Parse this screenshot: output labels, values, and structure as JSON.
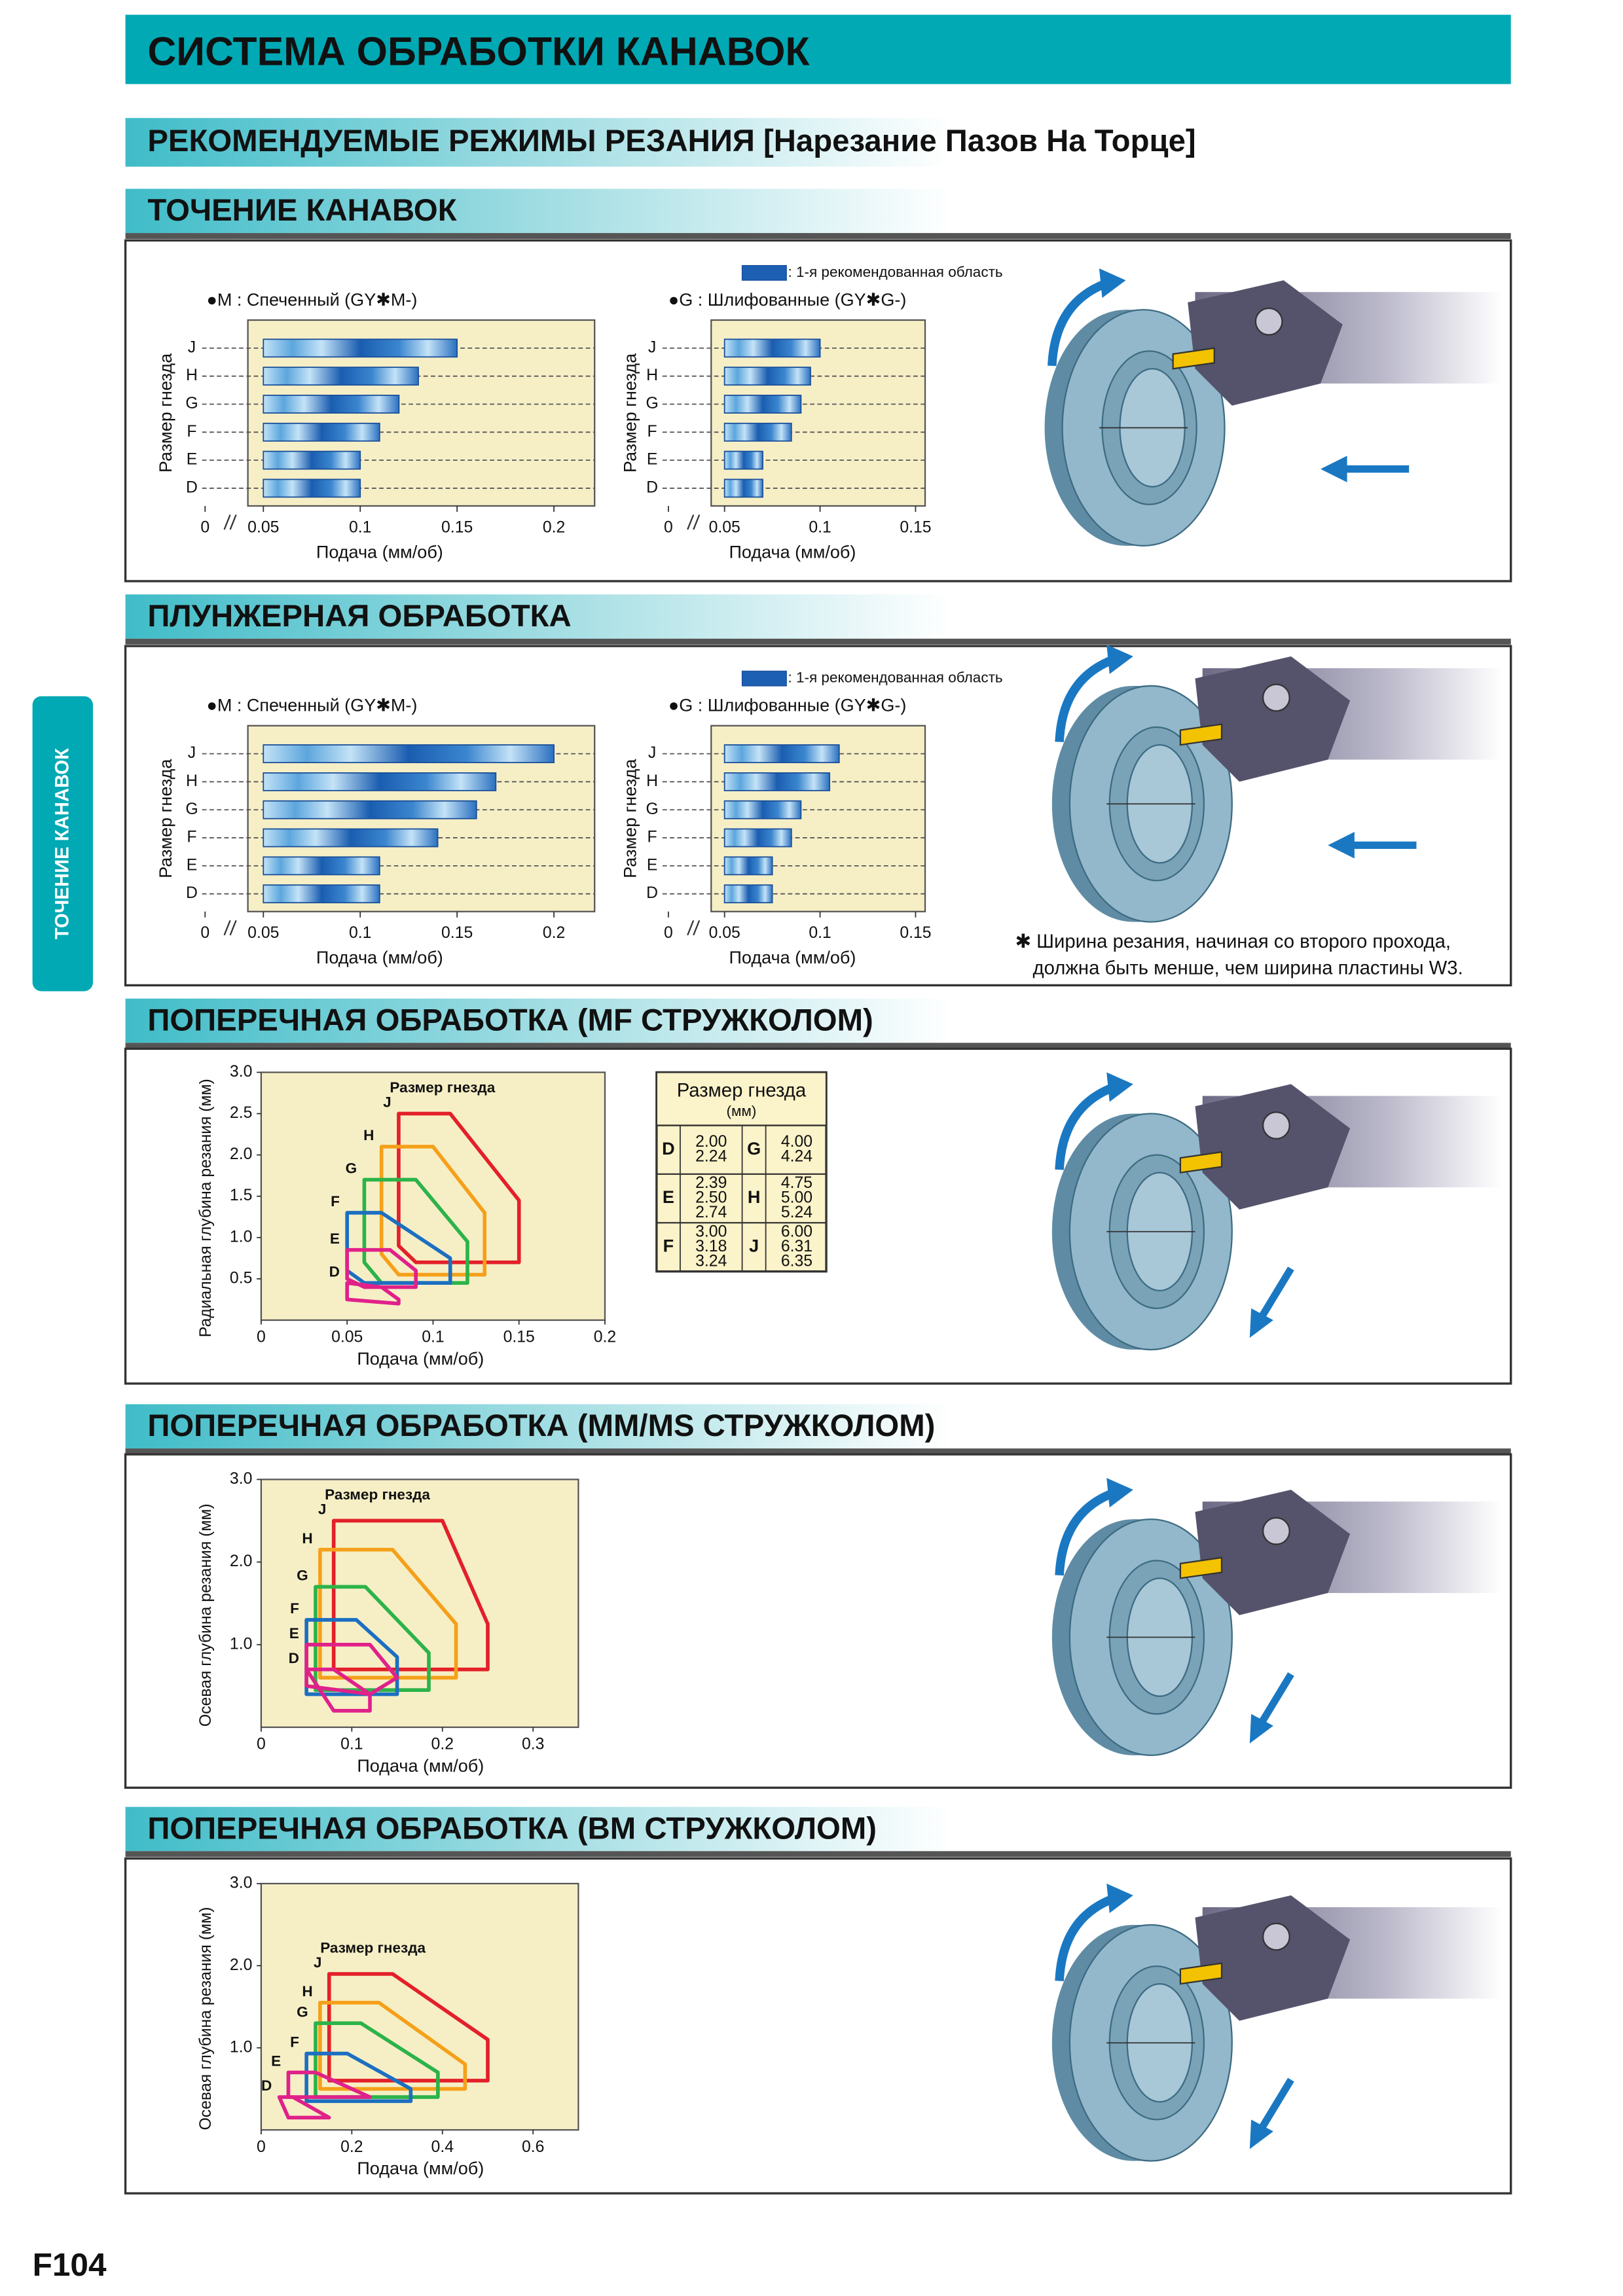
{
  "header": {
    "title": "СИСТЕМА ОБРАБОТКИ КАНАВОК",
    "subtitle": "РЕКОМЕНДУЕМЫЕ РЕЖИМЫ РЕЗАНИЯ [Нарезание Пазов На Торце]"
  },
  "side_tab": "ТОЧЕНИЕ КАНАВОК",
  "page_number": "F104",
  "sections": [
    {
      "title": "ТОЧЕНИЕ КАНАВОК",
      "legend": {
        "label": ": 1-я рекомендованная область",
        "color": "#1d5fb3"
      },
      "chart_data": [
        {
          "type": "range-bar",
          "title": "●M : Спеченный (GY✱M-)",
          "ylabel": "Размер гнезда",
          "xlabel": "Подача (мм/об)",
          "categories": [
            "J",
            "H",
            "G",
            "F",
            "E",
            "D"
          ],
          "values": [
            [
              0.05,
              0.15
            ],
            [
              0.05,
              0.13
            ],
            [
              0.05,
              0.12
            ],
            [
              0.05,
              0.11
            ],
            [
              0.05,
              0.1
            ],
            [
              0.05,
              0.1
            ]
          ],
          "xlim": [
            0.042,
            0.221
          ],
          "xticks": [
            0,
            0.05,
            0.1,
            0.15,
            0.2
          ],
          "axis_break": true
        },
        {
          "type": "range-bar",
          "title": "●G : Шлифованные (GY✱G-)",
          "ylabel": "Размер гнезда",
          "xlabel": "Подача (мм/об)",
          "categories": [
            "J",
            "H",
            "G",
            "F",
            "E",
            "D"
          ],
          "values": [
            [
              0.05,
              0.1
            ],
            [
              0.05,
              0.095
            ],
            [
              0.05,
              0.09
            ],
            [
              0.05,
              0.085
            ],
            [
              0.05,
              0.07
            ],
            [
              0.05,
              0.07
            ]
          ],
          "xlim": [
            0.043,
            0.155
          ],
          "xticks": [
            0,
            0.05,
            0.1,
            0.15
          ],
          "axis_break": true
        }
      ]
    },
    {
      "title": "ПЛУНЖЕРНАЯ ОБРАБОТКА",
      "legend": {
        "label": ": 1-я рекомендованная область",
        "color": "#1d5fb3"
      },
      "chart_data": [
        {
          "type": "range-bar",
          "title": "●M : Спеченный (GY✱M-)",
          "ylabel": "Размер гнезда",
          "xlabel": "Подача (мм/об)",
          "categories": [
            "J",
            "H",
            "G",
            "F",
            "E",
            "D"
          ],
          "values": [
            [
              0.05,
              0.2
            ],
            [
              0.05,
              0.17
            ],
            [
              0.05,
              0.16
            ],
            [
              0.05,
              0.14
            ],
            [
              0.05,
              0.11
            ],
            [
              0.05,
              0.11
            ]
          ],
          "xlim": [
            0.042,
            0.221
          ],
          "xticks": [
            0,
            0.05,
            0.1,
            0.15,
            0.2
          ],
          "axis_break": true
        },
        {
          "type": "range-bar",
          "title": "●G : Шлифованные (GY✱G-)",
          "ylabel": "Размер гнезда",
          "xlabel": "Подача (мм/об)",
          "categories": [
            "J",
            "H",
            "G",
            "F",
            "E",
            "D"
          ],
          "values": [
            [
              0.05,
              0.11
            ],
            [
              0.05,
              0.105
            ],
            [
              0.05,
              0.09
            ],
            [
              0.05,
              0.085
            ],
            [
              0.05,
              0.075
            ],
            [
              0.05,
              0.075
            ]
          ],
          "xlim": [
            0.043,
            0.155
          ],
          "xticks": [
            0,
            0.05,
            0.1,
            0.15
          ],
          "axis_break": true
        }
      ],
      "note": [
        "✱ Ширина резания, начиная со второго прохода,",
        "должна быть менше, чем ширина пластины W3."
      ]
    },
    {
      "title": "ПОПЕРЕЧНАЯ ОБРАБОТКА (MF СТРУЖКОЛОМ)",
      "chart_data": {
        "type": "polygon",
        "annotation": "Размер гнезда",
        "xlabel": "Подача (мм/об)",
        "ylabel": "Радиальная глубина резания (мм)",
        "xlim": [
          0,
          0.2
        ],
        "ylim": [
          0,
          3
        ],
        "xticks": [
          0,
          0.05,
          0.1,
          0.15,
          0.2
        ],
        "yticks": [
          0.5,
          {
            "value": 1,
            "label": "1.0"
          },
          1.5,
          {
            "value": 2,
            "label": "2.0"
          },
          2.5,
          {
            "value": 3,
            "label": "3.0"
          }
        ],
        "series": [
          {
            "name": "J",
            "color": "#e3202a",
            "x": [
              0.08,
              0.11,
              0.15,
              0.15,
              0.09,
              0.08
            ],
            "y": [
              2.5,
              2.5,
              1.45,
              0.7,
              0.7,
              0.9
            ]
          },
          {
            "name": "H",
            "color": "#f5a01a",
            "x": [
              0.07,
              0.1,
              0.13,
              0.13,
              0.08,
              0.07
            ],
            "y": [
              2.1,
              2.1,
              1.3,
              0.55,
              0.55,
              0.8
            ]
          },
          {
            "name": "G",
            "color": "#2cb34a",
            "x": [
              0.06,
              0.09,
              0.12,
              0.12,
              0.07,
              0.06
            ],
            "y": [
              1.7,
              1.7,
              0.95,
              0.45,
              0.45,
              0.7
            ]
          },
          {
            "name": "F",
            "color": "#1c6fc1",
            "x": [
              0.05,
              0.07,
              0.11,
              0.11,
              0.06,
              0.05
            ],
            "y": [
              1.3,
              1.3,
              0.75,
              0.45,
              0.45,
              0.6
            ]
          },
          {
            "name": "E",
            "color": "#e0218a",
            "x": [
              0.05,
              0.075,
              0.09,
              0.09,
              0.06,
              0.05
            ],
            "y": [
              0.85,
              0.85,
              0.6,
              0.4,
              0.4,
              0.5
            ]
          },
          {
            "name": "D",
            "color": "#e0218a",
            "x": [
              0.05,
              0.07,
              0.08,
              0.08,
              0.05
            ],
            "y": [
              0.45,
              0.4,
              0.25,
              0.2,
              0.25
            ]
          }
        ]
      },
      "table": {
        "header": [
          "Размер гнезда",
          "(мм)"
        ],
        "rows": [
          [
            {
              "size": "D",
              "values": [
                "2.00",
                "2.24"
              ]
            },
            {
              "size": "G",
              "values": [
                "4.00",
                "4.24"
              ]
            }
          ],
          [
            {
              "size": "E",
              "values": [
                "2.39",
                "2.50",
                "2.74"
              ]
            },
            {
              "size": "H",
              "values": [
                "4.75",
                "5.00",
                "5.24"
              ]
            }
          ],
          [
            {
              "size": "F",
              "values": [
                "3.00",
                "3.18",
                "3.24"
              ]
            },
            {
              "size": "J",
              "values": [
                "6.00",
                "6.31",
                "6.35"
              ]
            }
          ]
        ]
      }
    },
    {
      "title": "ПОПЕРЕЧНАЯ ОБРАБОТКА (MM/MS СТРУЖКОЛОМ)",
      "chart_data": {
        "type": "polygon",
        "annotation": "Размер гнезда",
        "xlabel": "Подача (мм/об)",
        "ylabel": "Осевая глубина резания (мм)",
        "xlim": [
          0,
          0.35
        ],
        "ylim": [
          0,
          3
        ],
        "xticks": [
          0,
          0.1,
          0.2,
          0.3
        ],
        "yticks": [
          {
            "value": 1,
            "label": "1.0"
          },
          {
            "value": 2,
            "label": "2.0"
          },
          {
            "value": 3,
            "label": "3.0"
          }
        ],
        "series": [
          {
            "name": "J",
            "color": "#e3202a",
            "x": [
              0.08,
              0.2,
              0.25,
              0.25,
              0.08
            ],
            "y": [
              2.5,
              2.5,
              1.25,
              0.7,
              0.7
            ]
          },
          {
            "name": "H",
            "color": "#f5a01a",
            "x": [
              0.065,
              0.145,
              0.215,
              0.215,
              0.065
            ],
            "y": [
              2.15,
              2.15,
              1.25,
              0.6,
              0.6
            ]
          },
          {
            "name": "G",
            "color": "#2cb34a",
            "x": [
              0.06,
              0.115,
              0.185,
              0.185,
              0.06
            ],
            "y": [
              1.7,
              1.7,
              0.9,
              0.45,
              0.45
            ]
          },
          {
            "name": "F",
            "color": "#1c6fc1",
            "x": [
              0.05,
              0.105,
              0.15,
              0.15,
              0.05
            ],
            "y": [
              1.3,
              1.3,
              0.85,
              0.4,
              0.4
            ]
          },
          {
            "name": "E",
            "color": "#e0218a",
            "x": [
              0.05,
              0.12,
              0.15,
              0.12,
              0.05
            ],
            "y": [
              1.0,
              1.0,
              0.6,
              0.4,
              0.5
            ]
          },
          {
            "name": "D",
            "color": "#e0218a",
            "x": [
              0.05,
              0.08,
              0.12,
              0.12,
              0.08
            ],
            "y": [
              0.7,
              0.7,
              0.4,
              0.2,
              0.2
            ]
          }
        ]
      }
    },
    {
      "title": "ПОПЕРЕЧНАЯ ОБРАБОТКА (BM СТРУЖКОЛОМ)",
      "chart_data": {
        "type": "polygon",
        "annotation": "Размер гнезда",
        "xlabel": "Подача (мм/об)",
        "ylabel": "Осевая глубина резания (мм)",
        "xlim": [
          0,
          0.7
        ],
        "ylim": [
          0,
          3
        ],
        "xticks": [
          0,
          0.2,
          0.4,
          0.6
        ],
        "yticks": [
          {
            "value": 1,
            "label": "1.0"
          },
          {
            "value": 2,
            "label": "2.0"
          },
          {
            "value": 3,
            "label": "3.0"
          }
        ],
        "series": [
          {
            "name": "J",
            "color": "#e3202a",
            "x": [
              0.15,
              0.29,
              0.5,
              0.5,
              0.15
            ],
            "y": [
              1.9,
              1.9,
              1.1,
              0.6,
              0.6
            ]
          },
          {
            "name": "H",
            "color": "#f5a01a",
            "x": [
              0.13,
              0.26,
              0.45,
              0.45,
              0.13
            ],
            "y": [
              1.55,
              1.55,
              0.8,
              0.5,
              0.5
            ]
          },
          {
            "name": "G",
            "color": "#2cb34a",
            "x": [
              0.12,
              0.22,
              0.39,
              0.39,
              0.12
            ],
            "y": [
              1.3,
              1.3,
              0.7,
              0.4,
              0.4
            ]
          },
          {
            "name": "F",
            "color": "#1c6fc1",
            "x": [
              0.1,
              0.19,
              0.33,
              0.33,
              0.1
            ],
            "y": [
              0.93,
              0.93,
              0.5,
              0.35,
              0.35
            ]
          },
          {
            "name": "E",
            "color": "#e0218a",
            "x": [
              0.06,
              0.12,
              0.24,
              0.06
            ],
            "y": [
              0.7,
              0.7,
              0.4,
              0.4
            ]
          },
          {
            "name": "D",
            "color": "#e0218a",
            "x": [
              0.04,
              0.07,
              0.15,
              0.06
            ],
            "y": [
              0.4,
              0.4,
              0.15,
              0.15
            ]
          }
        ]
      }
    }
  ]
}
